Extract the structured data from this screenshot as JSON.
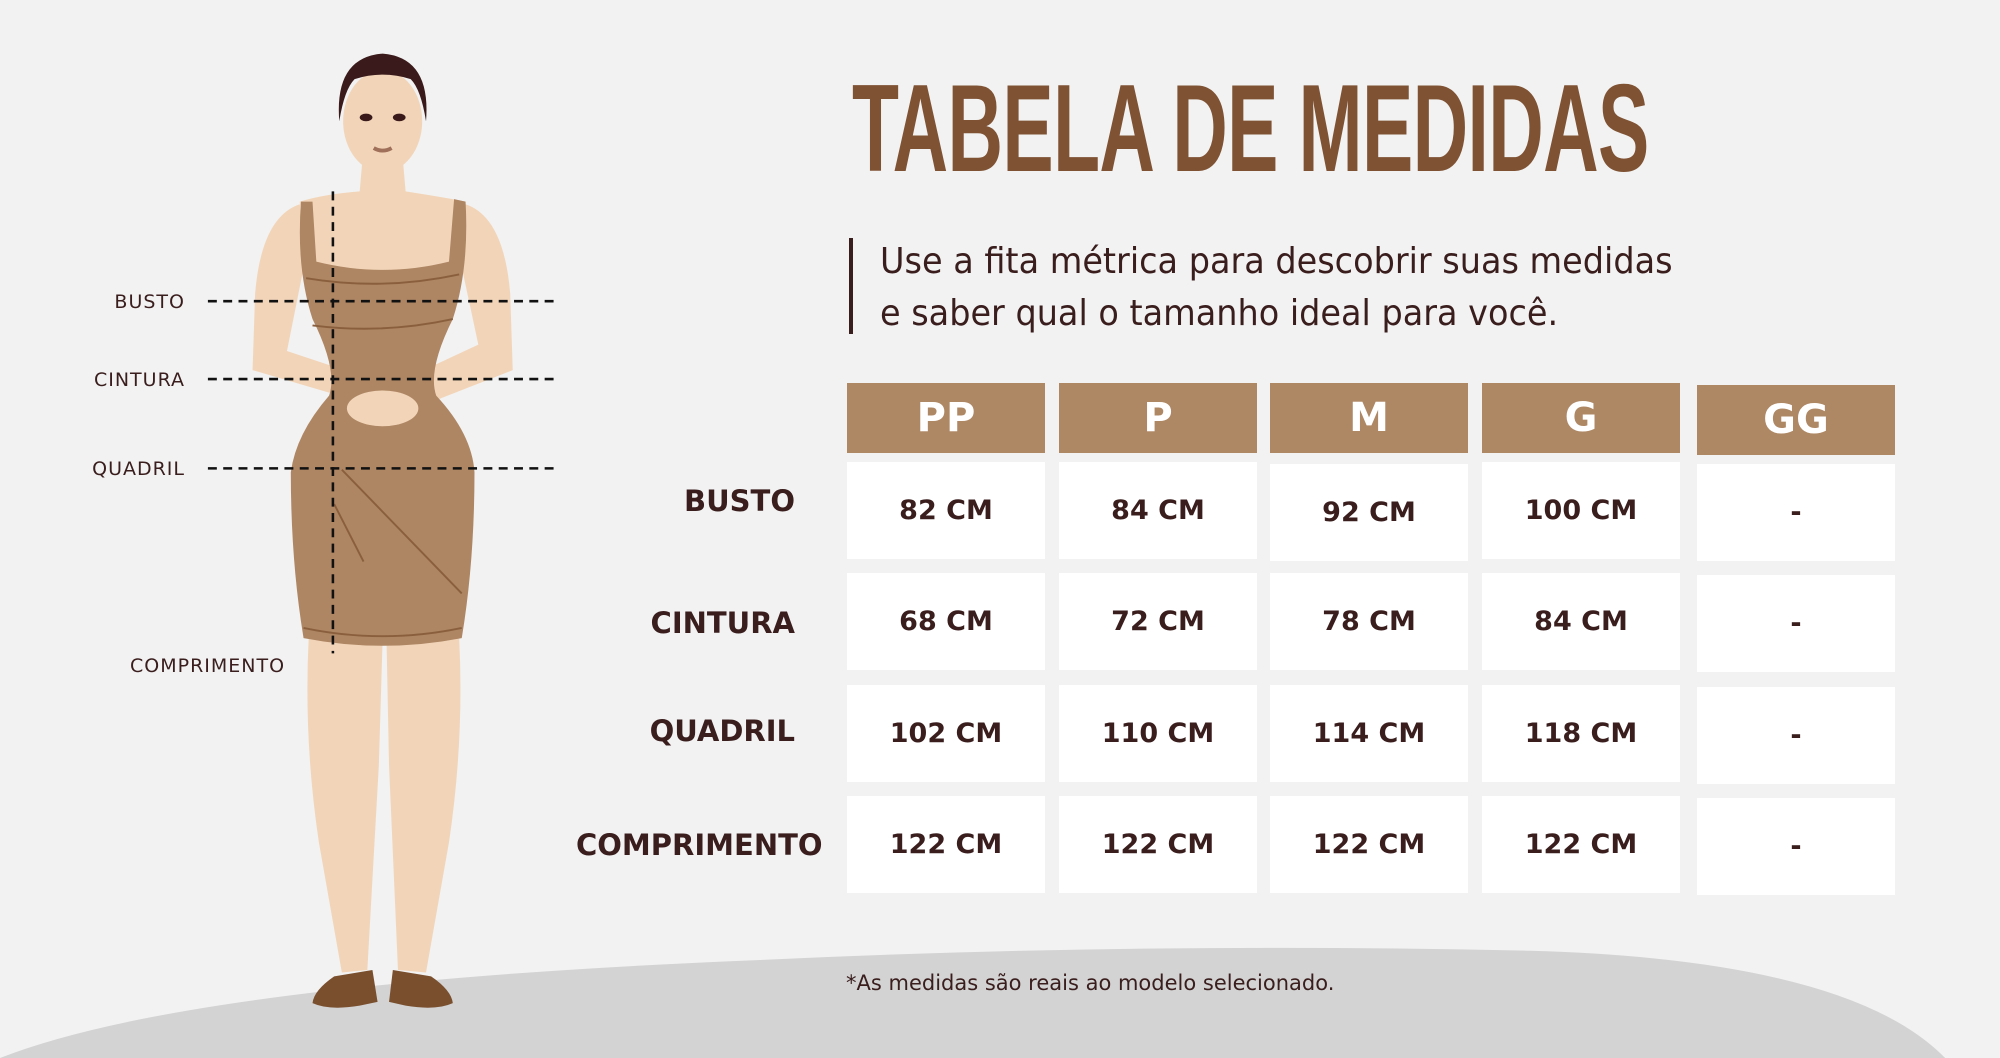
{
  "title": "TABELA DE MEDIDAS",
  "subtitle": {
    "line1": "Use a fita métrica para descobrir suas medidas",
    "line2": "e saber qual o tamanho ideal para você."
  },
  "figure_labels": {
    "busto": "BUSTO",
    "cintura": "CINTURA",
    "quadril": "QUADRIL",
    "comprimento": "COMPRIMENTO"
  },
  "table": {
    "sizes": [
      "PP",
      "P",
      "M",
      "G",
      "GG"
    ],
    "rows": [
      {
        "label": "BUSTO",
        "values": [
          "82 CM",
          "84 CM",
          "92 CM",
          "100 CM",
          "-"
        ]
      },
      {
        "label": "CINTURA",
        "values": [
          "68 CM",
          "72 CM",
          "78 CM",
          "84 CM",
          "-"
        ]
      },
      {
        "label": "QUADRIL",
        "values": [
          "102 CM",
          "110 CM",
          "114 CM",
          "118 CM",
          "-"
        ]
      },
      {
        "label": "COMPRIMENTO",
        "values": [
          "122 CM",
          "122 CM",
          "122 CM",
          "122 CM",
          "-"
        ]
      }
    ]
  },
  "footnote": "*As medidas são reais ao modelo selecionado.",
  "colors": {
    "title": "#7f5233",
    "header_bg": "#ae8764",
    "text": "#3a1d1d",
    "background": "#f2f2f2",
    "dress": "#ae8663",
    "skin": "#f2d5b9"
  }
}
